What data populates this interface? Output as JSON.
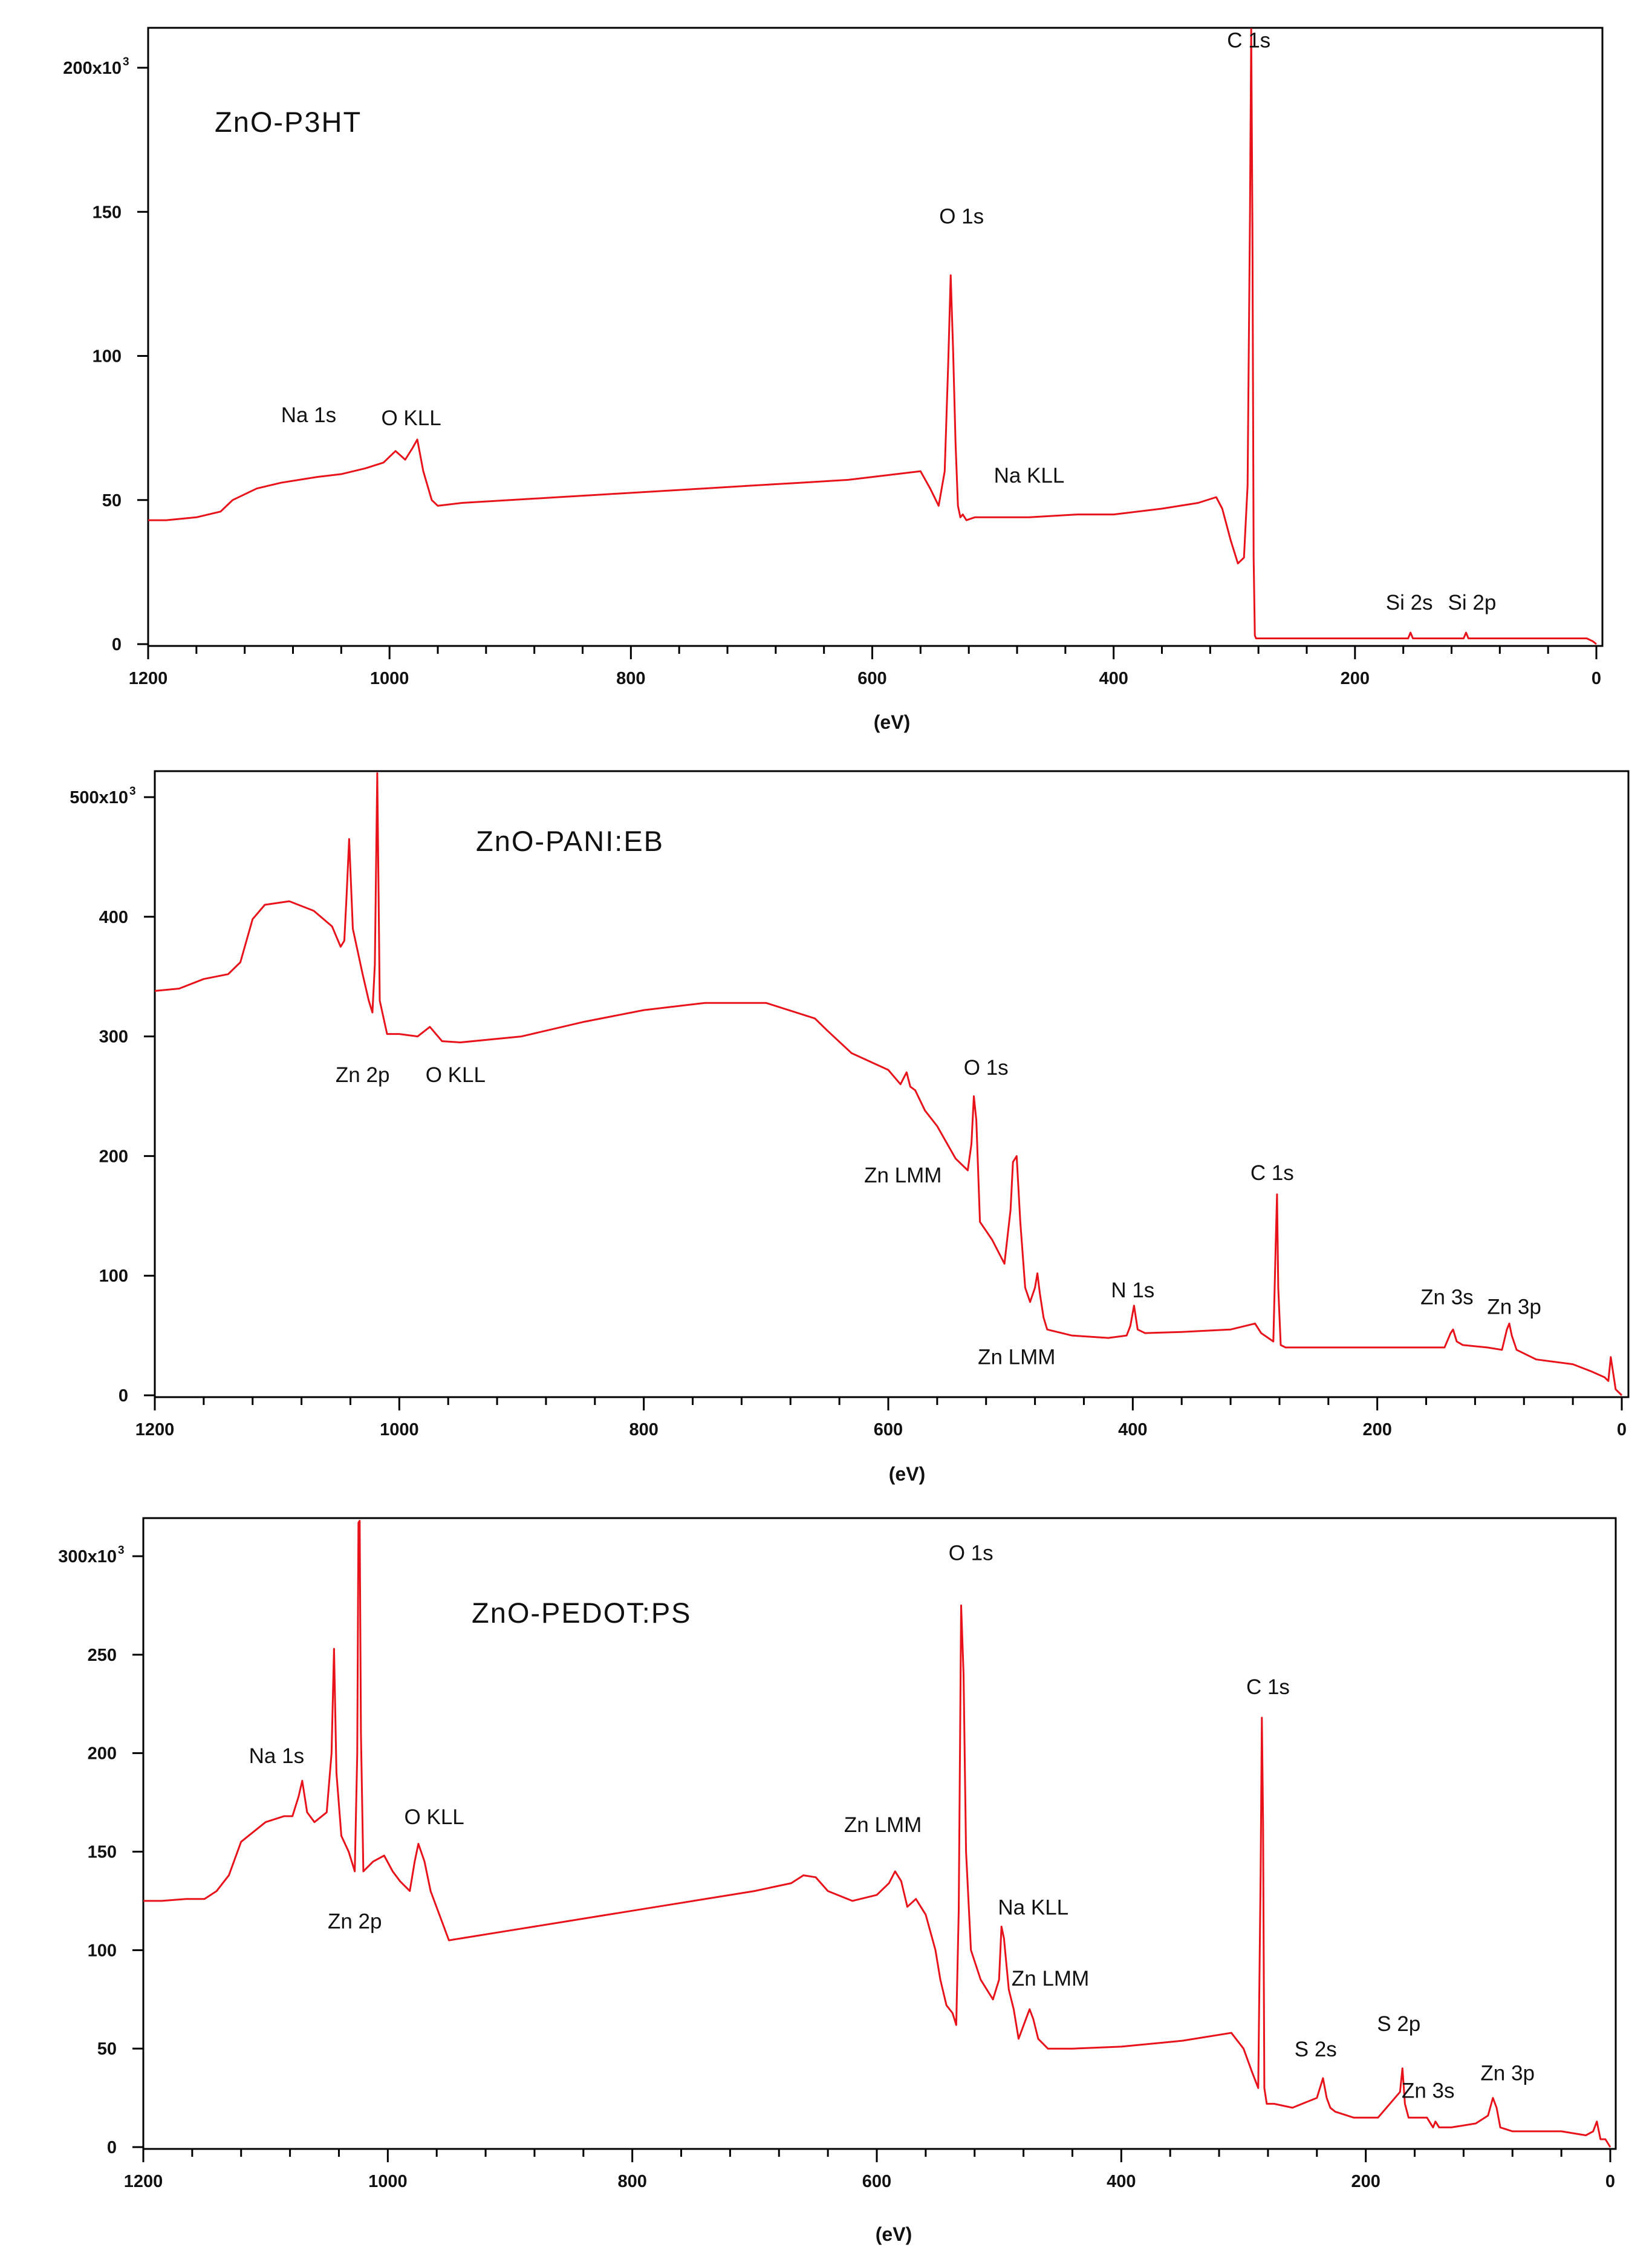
{
  "figure": {
    "line_color": "#e8121a",
    "axis_color": "#000000",
    "background": "#ffffff"
  },
  "chart_data": [
    {
      "type": "line",
      "title": "ZnO-P3HT",
      "xlabel": "(eV)",
      "ylabel": "",
      "xlim": [
        1200,
        0
      ],
      "ylim": [
        0,
        215
      ],
      "x_ticks": [
        1200,
        1000,
        800,
        600,
        400,
        200,
        0
      ],
      "x_tick_labels": [
        "1200",
        "1000",
        "800",
        "600",
        "400",
        "200",
        "0"
      ],
      "y_ticks": [
        0,
        50,
        100,
        150,
        200
      ],
      "y_tick_labels": [
        "0",
        "50",
        "100",
        "150",
        "200x10"
      ],
      "y_multiplier_exponent": "3",
      "grid": false,
      "series": [
        {
          "name": "ZnO-P3HT",
          "x": [
            1200,
            1185,
            1160,
            1140,
            1130,
            1110,
            1090,
            1060,
            1040,
            1020,
            1005,
            995,
            987,
            981,
            977,
            972,
            965,
            960,
            940,
            900,
            860,
            820,
            780,
            740,
            700,
            660,
            620,
            580,
            560,
            552,
            545,
            540,
            537,
            535,
            533,
            531,
            529,
            527,
            525,
            522,
            515,
            500,
            470,
            430,
            400,
            360,
            330,
            315,
            310,
            303,
            297,
            292,
            289,
            287,
            286,
            285,
            284,
            283,
            282,
            281,
            279,
            270,
            200,
            156,
            154,
            152,
            140,
            110,
            108,
            106,
            80,
            30,
            15,
            8,
            3,
            0
          ],
          "values": [
            43,
            43,
            44,
            46,
            50,
            54,
            56,
            58,
            59,
            61,
            63,
            67,
            64,
            68,
            71,
            60,
            50,
            48,
            49,
            50,
            51,
            52,
            53,
            54,
            55,
            56,
            57,
            59,
            60,
            54,
            48,
            60,
            98,
            128,
            102,
            70,
            48,
            44,
            45,
            43,
            44,
            44,
            44,
            45,
            45,
            47,
            49,
            51,
            47,
            36,
            28,
            30,
            55,
            150,
            216,
            145,
            30,
            3,
            2,
            2,
            2,
            2,
            2,
            2,
            4,
            2,
            2,
            2,
            4,
            2,
            2,
            2,
            2,
            2,
            1,
            0
          ]
        }
      ],
      "annotations": [
        {
          "text": "C 1s",
          "x": 288,
          "y": 207
        },
        {
          "text": "O 1s",
          "x": 526,
          "y": 146
        },
        {
          "text": "Na 1s",
          "x": 1067,
          "y": 77
        },
        {
          "text": "O KLL",
          "x": 982,
          "y": 76
        },
        {
          "text": "Na KLL",
          "x": 470,
          "y": 56
        },
        {
          "text": "Si 2s",
          "x": 155,
          "y": 12
        },
        {
          "text": "Si 2p",
          "x": 103,
          "y": 12
        }
      ]
    },
    {
      "type": "line",
      "title": "ZnO-PANI:EB",
      "xlabel": "(eV)",
      "ylabel": "",
      "xlim": [
        1200,
        0
      ],
      "ylim": [
        0,
        520
      ],
      "x_ticks": [
        1200,
        1000,
        800,
        600,
        400,
        200,
        0
      ],
      "x_tick_labels": [
        "1200",
        "1000",
        "800",
        "600",
        "400",
        "200",
        "0"
      ],
      "y_ticks": [
        0,
        100,
        200,
        300,
        400,
        500
      ],
      "y_tick_labels": [
        "0",
        "100",
        "200",
        "300",
        "400",
        "500x10"
      ],
      "y_multiplier_exponent": "3",
      "grid": false,
      "series": [
        {
          "name": "ZnO-PANI:EB",
          "x": [
            1200,
            1180,
            1160,
            1140,
            1130,
            1120,
            1110,
            1090,
            1070,
            1055,
            1048,
            1045,
            1043,
            1041,
            1038,
            1030,
            1025,
            1022,
            1020,
            1018,
            1016,
            1010,
            1000,
            985,
            975,
            965,
            950,
            900,
            850,
            800,
            750,
            700,
            660,
            650,
            630,
            600,
            590,
            585,
            582,
            578,
            570,
            560,
            545,
            535,
            532,
            530,
            528,
            525,
            515,
            505,
            500,
            498,
            495,
            492,
            488,
            484,
            480,
            478,
            476,
            473,
            470,
            450,
            420,
            405,
            402,
            399,
            396,
            390,
            360,
            320,
            300,
            295,
            285,
            283,
            282,
            281,
            279,
            275,
            250,
            200,
            145,
            140,
            138,
            135,
            130,
            110,
            98,
            94,
            92,
            90,
            86,
            70,
            40,
            25,
            14,
            11,
            9,
            5,
            0
          ],
          "values": [
            338,
            340,
            348,
            352,
            362,
            398,
            410,
            413,
            405,
            392,
            375,
            380,
            420,
            465,
            390,
            352,
            330,
            320,
            360,
            520,
            330,
            302,
            302,
            300,
            308,
            296,
            295,
            300,
            312,
            322,
            328,
            328,
            315,
            305,
            286,
            272,
            260,
            270,
            258,
            255,
            238,
            225,
            198,
            188,
            210,
            250,
            230,
            145,
            130,
            110,
            155,
            195,
            200,
            145,
            90,
            78,
            90,
            102,
            85,
            65,
            55,
            50,
            48,
            50,
            58,
            75,
            55,
            52,
            53,
            55,
            60,
            52,
            45,
            130,
            168,
            90,
            42,
            40,
            40,
            40,
            40,
            52,
            55,
            45,
            42,
            40,
            38,
            55,
            60,
            50,
            38,
            30,
            26,
            20,
            15,
            12,
            32,
            5,
            0
          ]
        }
      ],
      "annotations": [
        {
          "text": "Zn 2p",
          "x": 1030,
          "y": 262
        },
        {
          "text": "O KLL",
          "x": 954,
          "y": 262
        },
        {
          "text": "O 1s",
          "x": 520,
          "y": 268
        },
        {
          "text": "Zn LMM",
          "x": 588,
          "y": 178
        },
        {
          "text": "C 1s",
          "x": 286,
          "y": 180
        },
        {
          "text": "N 1s",
          "x": 400,
          "y": 82
        },
        {
          "text": "Zn LMM",
          "x": 495,
          "y": 26
        },
        {
          "text": "Zn 3s",
          "x": 143,
          "y": 76
        },
        {
          "text": "Zn 3p",
          "x": 88,
          "y": 68
        }
      ]
    },
    {
      "type": "line",
      "title": "ZnO-PEDOT:PS",
      "xlabel": "(eV)",
      "ylabel": "",
      "xlim": [
        1200,
        0
      ],
      "ylim": [
        0,
        318
      ],
      "x_ticks": [
        1200,
        1000,
        800,
        600,
        400,
        200,
        0
      ],
      "x_tick_labels": [
        "1200",
        "1000",
        "800",
        "600",
        "400",
        "200",
        "0"
      ],
      "y_ticks": [
        0,
        50,
        100,
        150,
        200,
        250,
        300
      ],
      "y_tick_labels": [
        "0",
        "50",
        "100",
        "150",
        "200",
        "250",
        "300x10"
      ],
      "y_multiplier_exponent": "3",
      "grid": false,
      "series": [
        {
          "name": "ZnO-PEDOT:PS",
          "x": [
            1200,
            1185,
            1165,
            1150,
            1140,
            1130,
            1120,
            1100,
            1085,
            1078,
            1073,
            1070,
            1066,
            1060,
            1050,
            1046,
            1044,
            1042,
            1038,
            1032,
            1027,
            1025,
            1024,
            1023,
            1022,
            1020,
            1012,
            1003,
            996,
            990,
            982,
            978,
            975,
            970,
            965,
            950,
            900,
            850,
            800,
            750,
            700,
            670,
            660,
            650,
            640,
            620,
            600,
            590,
            585,
            580,
            575,
            568,
            560,
            552,
            548,
            543,
            538,
            535,
            533,
            531,
            529,
            527,
            523,
            515,
            505,
            500,
            498,
            496,
            492,
            488,
            484,
            478,
            475,
            472,
            468,
            460,
            440,
            400,
            350,
            310,
            300,
            293,
            288,
            286,
            285,
            284,
            283,
            281,
            275,
            260,
            240,
            235,
            232,
            229,
            225,
            210,
            190,
            172,
            170,
            168,
            165,
            150,
            145,
            143,
            140,
            130,
            110,
            100,
            96,
            93,
            90,
            80,
            40,
            20,
            14,
            11,
            8,
            4,
            0
          ],
          "values": [
            125,
            125,
            126,
            126,
            130,
            138,
            155,
            165,
            168,
            168,
            178,
            186,
            170,
            165,
            170,
            200,
            253,
            190,
            158,
            150,
            140,
            200,
            317,
            318,
            210,
            140,
            145,
            148,
            140,
            135,
            130,
            145,
            154,
            145,
            130,
            105,
            110,
            115,
            120,
            125,
            130,
            134,
            138,
            137,
            130,
            125,
            128,
            134,
            140,
            135,
            122,
            126,
            118,
            100,
            85,
            72,
            68,
            62,
            120,
            275,
            240,
            150,
            100,
            85,
            75,
            85,
            112,
            106,
            80,
            70,
            55,
            65,
            70,
            65,
            55,
            50,
            50,
            51,
            54,
            58,
            50,
            38,
            30,
            140,
            218,
            165,
            30,
            22,
            22,
            20,
            25,
            35,
            25,
            20,
            18,
            15,
            15,
            28,
            40,
            22,
            15,
            15,
            10,
            13,
            10,
            10,
            12,
            16,
            25,
            20,
            10,
            8,
            8,
            6,
            8,
            13,
            4,
            4,
            0
          ]
        }
      ],
      "annotations": [
        {
          "text": "O 1s",
          "x": 523,
          "y": 298
        },
        {
          "text": "C 1s",
          "x": 280,
          "y": 230
        },
        {
          "text": "Na 1s",
          "x": 1091,
          "y": 195
        },
        {
          "text": "Zn 2p",
          "x": 1027,
          "y": 111
        },
        {
          "text": "O KLL",
          "x": 962,
          "y": 164
        },
        {
          "text": "Zn LMM",
          "x": 595,
          "y": 160
        },
        {
          "text": "Na KLL",
          "x": 472,
          "y": 118
        },
        {
          "text": "Zn LMM",
          "x": 458,
          "y": 82
        },
        {
          "text": "S 2s",
          "x": 241,
          "y": 46
        },
        {
          "text": "S 2p",
          "x": 173,
          "y": 59
        },
        {
          "text": "Zn 3s",
          "x": 149,
          "y": 25
        },
        {
          "text": "Zn 3p",
          "x": 84,
          "y": 34
        }
      ]
    }
  ]
}
